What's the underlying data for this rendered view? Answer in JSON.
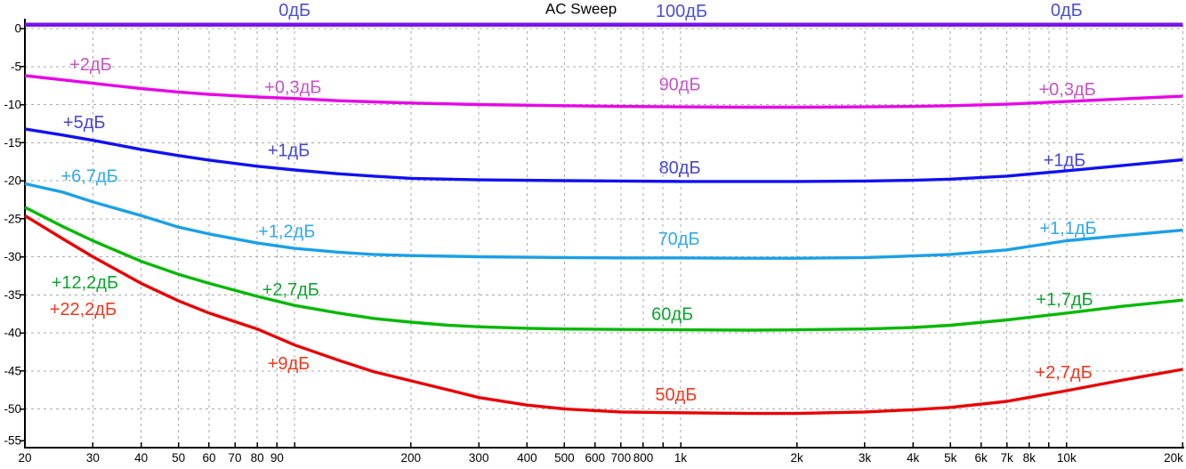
{
  "chart_data": {
    "type": "line",
    "title": "AC Sweep",
    "x_axis": {
      "scale": "log",
      "unit": "Hz",
      "min": 20,
      "max": 20000,
      "ticks": [
        {
          "f": 20,
          "label": "20"
        },
        {
          "f": 30,
          "label": "30"
        },
        {
          "f": 40,
          "label": "40"
        },
        {
          "f": 50,
          "label": "50"
        },
        {
          "f": 60,
          "label": "60"
        },
        {
          "f": 70,
          "label": "70"
        },
        {
          "f": 80,
          "label": "80"
        },
        {
          "f": 90,
          "label": "90"
        },
        {
          "f": 100,
          "label": ""
        },
        {
          "f": 200,
          "label": "200"
        },
        {
          "f": 300,
          "label": "300"
        },
        {
          "f": 400,
          "label": "400"
        },
        {
          "f": 500,
          "label": "500"
        },
        {
          "f": 600,
          "label": "600"
        },
        {
          "f": 700,
          "label": "700"
        },
        {
          "f": 800,
          "label": "800"
        },
        {
          "f": 900,
          "label": ""
        },
        {
          "f": 1000,
          "label": "1k"
        },
        {
          "f": 2000,
          "label": "2k"
        },
        {
          "f": 3000,
          "label": "3k"
        },
        {
          "f": 4000,
          "label": "4k"
        },
        {
          "f": 5000,
          "label": "5k"
        },
        {
          "f": 6000,
          "label": "6k"
        },
        {
          "f": 7000,
          "label": "7k"
        },
        {
          "f": 8000,
          "label": "8k"
        },
        {
          "f": 9000,
          "label": ""
        },
        {
          "f": 10000,
          "label": "10k"
        },
        {
          "f": 20000,
          "label": "20k"
        }
      ]
    },
    "y_axis": {
      "unit": "dB",
      "min": -55,
      "max": 0,
      "step": 5,
      "ticks": [
        {
          "db": 0,
          "label": "0"
        },
        {
          "db": -5,
          "label": "-5"
        },
        {
          "db": -10,
          "label": "-10"
        },
        {
          "db": -15,
          "label": "-15"
        },
        {
          "db": -20,
          "label": "-20"
        },
        {
          "db": -25,
          "label": "-25"
        },
        {
          "db": -30,
          "label": "-30"
        },
        {
          "db": -35,
          "label": "-35"
        },
        {
          "db": -40,
          "label": "-40"
        },
        {
          "db": -45,
          "label": "-45"
        },
        {
          "db": -50,
          "label": "-50"
        },
        {
          "db": -55,
          "label": "-55"
        }
      ],
      "gridline_levels": [
        0,
        -5,
        -10,
        -15,
        -20,
        -25,
        -30,
        -35,
        -40,
        -45,
        -50
      ]
    },
    "grid": true,
    "colors": {
      "background": "#ffffff",
      "grid": "#a9a9a9",
      "axis": "#000000",
      "tick_text": "#000000",
      "title_text": "#000000"
    },
    "series": [
      {
        "key": "100db",
        "name": "100дБ",
        "curve_color": "#7714EB",
        "label_color": "#4D4FD0",
        "stroke_width": 4.5,
        "points": [
          [
            20,
            0.5
          ],
          [
            20000,
            0.5
          ]
        ]
      },
      {
        "key": "90db",
        "name": "90дБ",
        "curve_color": "#E607E6",
        "label_color": "#C653C6",
        "stroke_width": 3.4,
        "points": [
          [
            20,
            -6.2
          ],
          [
            25,
            -6.75
          ],
          [
            30,
            -7.2
          ],
          [
            40,
            -7.9
          ],
          [
            50,
            -8.35
          ],
          [
            60,
            -8.65
          ],
          [
            80,
            -9.0
          ],
          [
            100,
            -9.2
          ],
          [
            130,
            -9.5
          ],
          [
            160,
            -9.65
          ],
          [
            200,
            -9.8
          ],
          [
            300,
            -10.0
          ],
          [
            500,
            -10.15
          ],
          [
            700,
            -10.25
          ],
          [
            1000,
            -10.3
          ],
          [
            1500,
            -10.35
          ],
          [
            2000,
            -10.35
          ],
          [
            3000,
            -10.3
          ],
          [
            4000,
            -10.25
          ],
          [
            5000,
            -10.15
          ],
          [
            7000,
            -9.95
          ],
          [
            10000,
            -9.6
          ],
          [
            14000,
            -9.25
          ],
          [
            20000,
            -8.9
          ]
        ]
      },
      {
        "key": "80db",
        "name": "80дБ",
        "curve_color": "#1111F0",
        "label_color": "#4646D0",
        "stroke_width": 3.4,
        "points": [
          [
            20,
            -13.2
          ],
          [
            25,
            -14.0
          ],
          [
            30,
            -14.7
          ],
          [
            40,
            -15.9
          ],
          [
            50,
            -16.7
          ],
          [
            60,
            -17.3
          ],
          [
            80,
            -18.1
          ],
          [
            100,
            -18.6
          ],
          [
            130,
            -19.1
          ],
          [
            160,
            -19.4
          ],
          [
            200,
            -19.7
          ],
          [
            300,
            -19.9
          ],
          [
            500,
            -20.0
          ],
          [
            700,
            -20.05
          ],
          [
            1000,
            -20.1
          ],
          [
            1500,
            -20.1
          ],
          [
            2000,
            -20.1
          ],
          [
            3000,
            -20.05
          ],
          [
            4000,
            -19.95
          ],
          [
            5000,
            -19.8
          ],
          [
            7000,
            -19.4
          ],
          [
            10000,
            -18.7
          ],
          [
            14000,
            -18.0
          ],
          [
            20000,
            -17.25
          ]
        ]
      },
      {
        "key": "70db",
        "name": "70дБ",
        "curve_color": "#1BA0E6",
        "label_color": "#2FA9E8",
        "stroke_width": 3.4,
        "points": [
          [
            20,
            -20.4
          ],
          [
            25,
            -21.5
          ],
          [
            30,
            -22.8
          ],
          [
            40,
            -24.6
          ],
          [
            50,
            -26.1
          ],
          [
            60,
            -27.0
          ],
          [
            80,
            -28.2
          ],
          [
            100,
            -28.9
          ],
          [
            130,
            -29.4
          ],
          [
            160,
            -29.7
          ],
          [
            200,
            -29.85
          ],
          [
            300,
            -30.0
          ],
          [
            500,
            -30.1
          ],
          [
            700,
            -30.15
          ],
          [
            1000,
            -30.15
          ],
          [
            1500,
            -30.2
          ],
          [
            2000,
            -30.2
          ],
          [
            3000,
            -30.1
          ],
          [
            4000,
            -29.9
          ],
          [
            5000,
            -29.7
          ],
          [
            7000,
            -29.1
          ],
          [
            10000,
            -27.9
          ],
          [
            14000,
            -27.2
          ],
          [
            20000,
            -26.5
          ]
        ]
      },
      {
        "key": "60db",
        "name": "60дБ",
        "curve_color": "#06B806",
        "label_color": "#0CA42F",
        "stroke_width": 3.4,
        "points": [
          [
            20,
            -23.5
          ],
          [
            25,
            -26.0
          ],
          [
            30,
            -27.9
          ],
          [
            40,
            -30.6
          ],
          [
            50,
            -32.3
          ],
          [
            60,
            -33.5
          ],
          [
            80,
            -35.2
          ],
          [
            100,
            -36.4
          ],
          [
            130,
            -37.4
          ],
          [
            160,
            -38.1
          ],
          [
            200,
            -38.6
          ],
          [
            250,
            -39.0
          ],
          [
            300,
            -39.2
          ],
          [
            400,
            -39.4
          ],
          [
            500,
            -39.5
          ],
          [
            700,
            -39.55
          ],
          [
            1000,
            -39.6
          ],
          [
            1500,
            -39.65
          ],
          [
            2000,
            -39.6
          ],
          [
            3000,
            -39.5
          ],
          [
            4000,
            -39.3
          ],
          [
            5000,
            -39.0
          ],
          [
            7000,
            -38.3
          ],
          [
            10000,
            -37.4
          ],
          [
            14000,
            -36.5
          ],
          [
            20000,
            -35.7
          ]
        ]
      },
      {
        "key": "50db",
        "name": "50дБ",
        "curve_color": "#E80303",
        "label_color": "#F0371F",
        "stroke_width": 3.4,
        "points": [
          [
            20,
            -24.6
          ],
          [
            25,
            -27.6
          ],
          [
            30,
            -30.0
          ],
          [
            40,
            -33.5
          ],
          [
            50,
            -35.8
          ],
          [
            60,
            -37.4
          ],
          [
            80,
            -39.5
          ],
          [
            100,
            -41.6
          ],
          [
            130,
            -43.6
          ],
          [
            160,
            -45.1
          ],
          [
            200,
            -46.3
          ],
          [
            250,
            -47.5
          ],
          [
            300,
            -48.5
          ],
          [
            400,
            -49.5
          ],
          [
            500,
            -50.0
          ],
          [
            700,
            -50.4
          ],
          [
            1000,
            -50.5
          ],
          [
            1500,
            -50.6
          ],
          [
            2000,
            -50.6
          ],
          [
            3000,
            -50.4
          ],
          [
            4000,
            -50.1
          ],
          [
            5000,
            -49.8
          ],
          [
            7000,
            -49.0
          ],
          [
            10000,
            -47.6
          ],
          [
            14000,
            -46.2
          ],
          [
            20000,
            -44.8
          ]
        ]
      }
    ],
    "annotations": [
      {
        "key": "label-0db-left",
        "series": "100db",
        "text": "0дБ",
        "f": 100,
        "db": 2.45
      },
      {
        "key": "chart-title",
        "text": "AC Sweep",
        "f": 552,
        "db": 2.6,
        "color": "#000000",
        "size": 17
      },
      {
        "key": "label-100db",
        "series": "100db",
        "text": "100дБ",
        "f": 1005,
        "db": 2.3
      },
      {
        "key": "label-0db-right",
        "series": "100db",
        "text": "0дБ",
        "f": 10000,
        "db": 2.45
      },
      {
        "key": "label-90-left",
        "series": "90db",
        "text": "+2дБ",
        "f": 29.6,
        "db": -4.7
      },
      {
        "key": "label-90-mid",
        "series": "90db",
        "text": "+0,3дБ",
        "f": 99,
        "db": -7.7
      },
      {
        "key": "label-90db",
        "series": "90db",
        "text": "90дБ",
        "f": 995,
        "db": -7.35
      },
      {
        "key": "label-90-right",
        "series": "90db",
        "text": "+0,3дБ",
        "f": 10040,
        "db": -7.95
      },
      {
        "key": "label-80-left",
        "series": "80db",
        "text": "+5дБ",
        "f": 28.5,
        "db": -12.3
      },
      {
        "key": "label-80-mid",
        "series": "80db",
        "text": "+1дБ",
        "f": 96.5,
        "db": -16.0
      },
      {
        "key": "label-80db",
        "series": "80db",
        "text": "80дБ",
        "f": 995,
        "db": -18.25
      },
      {
        "key": "label-80-right",
        "series": "80db",
        "text": "+1дБ",
        "f": 9880,
        "db": -17.3
      },
      {
        "key": "label-70-left",
        "series": "70db",
        "text": "+6,7дБ",
        "f": 29.4,
        "db": -19.4
      },
      {
        "key": "label-70-mid",
        "series": "70db",
        "text": "+1,2дБ",
        "f": 95.4,
        "db": -26.65
      },
      {
        "key": "label-70db",
        "series": "70db",
        "text": "70дБ",
        "f": 990,
        "db": -27.6
      },
      {
        "key": "label-70-right",
        "series": "70db",
        "text": "+1,1дБ",
        "f": 10090,
        "db": -26.2
      },
      {
        "key": "label-60-left",
        "series": "60db",
        "text": "+12,2дБ",
        "f": 28.6,
        "db": -33.35
      },
      {
        "key": "label-60-mid",
        "series": "60db",
        "text": "+2,7дБ",
        "f": 97.7,
        "db": -34.3
      },
      {
        "key": "label-60db",
        "series": "60db",
        "text": "60дБ",
        "f": 952,
        "db": -37.5
      },
      {
        "key": "label-60-right",
        "series": "60db",
        "text": "+1,7дБ",
        "f": 9880,
        "db": -35.55
      },
      {
        "key": "label-50-left",
        "series": "50db",
        "text": "+22,2дБ",
        "f": 28.3,
        "db": -36.85
      },
      {
        "key": "label-50-mid",
        "series": "50db",
        "text": "+9дБ",
        "f": 96.5,
        "db": -44.0
      },
      {
        "key": "label-50db",
        "series": "50db",
        "text": "50дБ",
        "f": 973,
        "db": -48.1
      },
      {
        "key": "label-50-right",
        "series": "50db",
        "text": "+2,7дБ",
        "f": 9830,
        "db": -45.15
      }
    ]
  }
}
